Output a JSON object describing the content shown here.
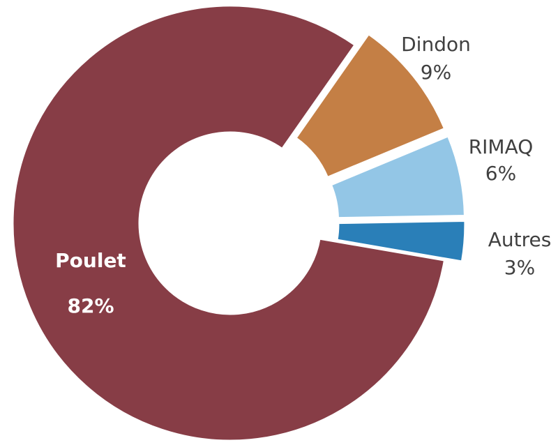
{
  "chart_data": {
    "type": "pie",
    "categories": [
      "Dindon",
      "RIMAQ",
      "Autres",
      "Poulet"
    ],
    "values": [
      9,
      6,
      3,
      82
    ],
    "value_labels": [
      "9%",
      "6%",
      "3%",
      "82%"
    ],
    "colors": [
      "#c47f45",
      "#93c6e6",
      "#2a7fb8",
      "#873d46"
    ],
    "donut": true
  }
}
